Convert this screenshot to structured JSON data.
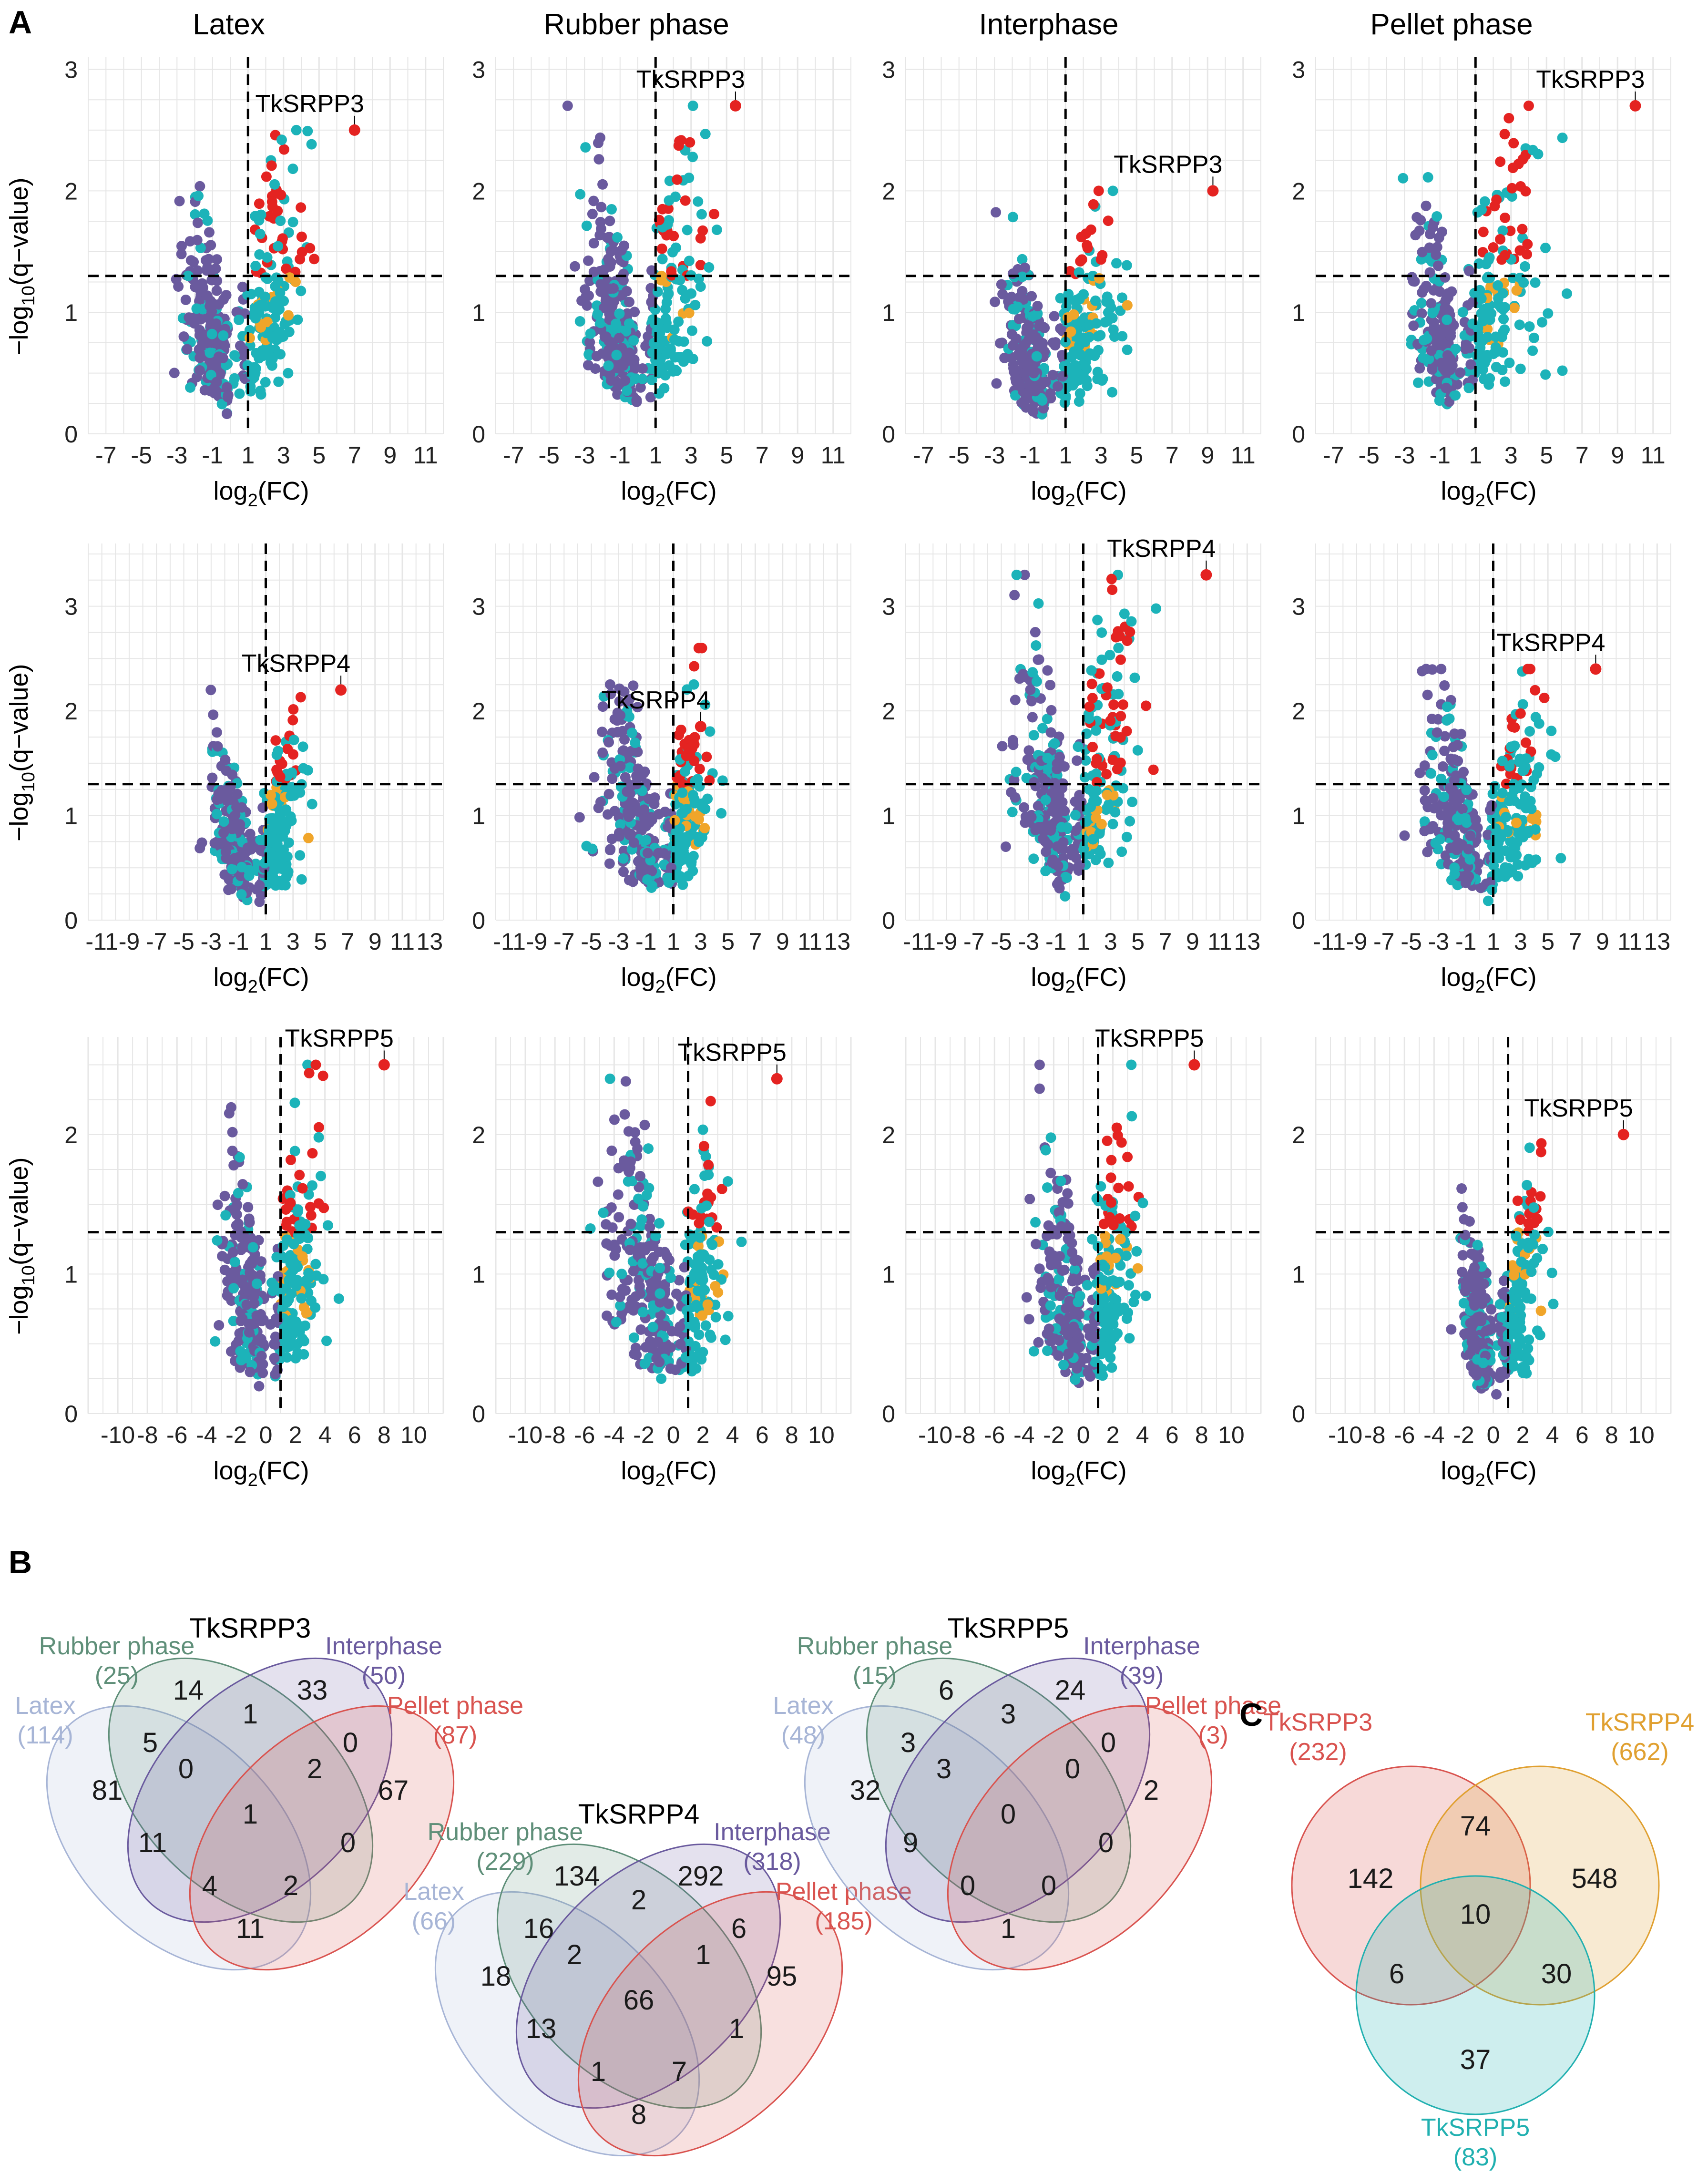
{
  "panel_labels": [
    "A",
    "B",
    "C"
  ],
  "column_titles": [
    "Latex",
    "Rubber phase",
    "Interphase",
    "Pellet phase"
  ],
  "axis_labels": {
    "y_main": "−log",
    "y_sub": "10",
    "y_rest": "(q−value)",
    "x_main": "log",
    "x_sub": "2",
    "x_rest": "(FC)"
  },
  "colors": {
    "purple": "#6a5a9e",
    "cyan": "#1cb3b9",
    "red": "#e42321",
    "orange": "#f0a52a",
    "grid": "#e6e6e6",
    "venn_latex": "#a7b5d6",
    "venn_rubber": "#5f8f79",
    "venn_inter": "#6a5a9e",
    "venn_pellet": "#d9534f",
    "venn_c_srpp3": "#d9534f",
    "venn_c_srpp4": "#e0a030",
    "venn_c_srpp5": "#21b0b0"
  },
  "chart_data": [
    {
      "type": "scatter",
      "title": "Latex",
      "gene": "TkSRPP3",
      "xlim": [
        -8,
        12
      ],
      "ylim": [
        0,
        3.1
      ],
      "xticks": [
        "-7",
        "-5",
        "-3",
        "-1",
        "1",
        "3",
        "5",
        "7",
        "9",
        "11"
      ],
      "yticks": [
        "0",
        "1",
        "2",
        "3"
      ],
      "yticks_pos": [
        0,
        1,
        2,
        3
      ],
      "q_threshold": 1.3,
      "fc_threshold": 1,
      "gene_point": [
        7,
        2.5
      ],
      "cluster": {
        "left": -6,
        "right": 9,
        "peak": 2.5
      }
    },
    {
      "type": "scatter",
      "title": "Rubber phase",
      "gene": "TkSRPP3",
      "xlim": [
        -8,
        12
      ],
      "ylim": [
        0,
        3.1
      ],
      "xticks": [
        "-7",
        "-5",
        "-3",
        "-1",
        "1",
        "3",
        "5",
        "7",
        "9",
        "11"
      ],
      "yticks": [
        "0",
        "1",
        "2",
        "3"
      ],
      "yticks_pos": [
        0,
        1,
        2,
        3
      ],
      "q_threshold": 1.3,
      "fc_threshold": 1,
      "gene_point": [
        5.5,
        2.7
      ],
      "cluster": {
        "left": -7,
        "right": 8,
        "peak": 2.7
      }
    },
    {
      "type": "scatter",
      "title": "Interphase",
      "gene": "TkSRPP3",
      "xlim": [
        -8,
        12
      ],
      "ylim": [
        0,
        3.1
      ],
      "xticks": [
        "-7",
        "-5",
        "-3",
        "-1",
        "1",
        "3",
        "5",
        "7",
        "9",
        "11"
      ],
      "yticks": [
        "0",
        "1",
        "2",
        "3"
      ],
      "yticks_pos": [
        0,
        1,
        2,
        3
      ],
      "q_threshold": 1.3,
      "fc_threshold": 1,
      "gene_point": [
        9.3,
        2.0
      ],
      "cluster": {
        "left": -6,
        "right": 9,
        "peak": 2.0
      }
    },
    {
      "type": "scatter",
      "title": "Pellet phase",
      "gene": "TkSRPP3",
      "xlim": [
        -8,
        12
      ],
      "ylim": [
        0,
        3.1
      ],
      "xticks": [
        "-7",
        "-5",
        "-3",
        "-1",
        "1",
        "3",
        "5",
        "7",
        "9",
        "11"
      ],
      "yticks": [
        "0",
        "1",
        "2",
        "3"
      ],
      "yticks_pos": [
        0,
        1,
        2,
        3
      ],
      "q_threshold": 1.3,
      "fc_threshold": 1,
      "gene_point": [
        10,
        2.7
      ],
      "cluster": {
        "left": -6,
        "right": 11,
        "peak": 2.7
      }
    },
    {
      "type": "scatter",
      "title": "Latex",
      "gene": "TkSRPP4",
      "xlim": [
        -12,
        14
      ],
      "ylim": [
        0,
        3.6
      ],
      "xticks": [
        "-11",
        "-9",
        "-7",
        "-5",
        "-3",
        "-1",
        "1",
        "3",
        "5",
        "7",
        "9",
        "11",
        "13"
      ],
      "yticks": [
        "0",
        "1",
        "2",
        "3"
      ],
      "yticks_pos": [
        0,
        1,
        2,
        3
      ],
      "q_threshold": 1.3,
      "fc_threshold": 1,
      "gene_point": [
        6.5,
        2.2
      ],
      "cluster": {
        "left": -7,
        "right": 7,
        "peak": 2.2
      }
    },
    {
      "type": "scatter",
      "title": "Rubber phase",
      "gene": "TkSRPP4",
      "xlim": [
        -12,
        14
      ],
      "ylim": [
        0,
        3.6
      ],
      "xticks": [
        "-11",
        "-9",
        "-7",
        "-5",
        "-3",
        "-1",
        "1",
        "3",
        "5",
        "7",
        "9",
        "11",
        "13"
      ],
      "yticks": [
        "0",
        "1",
        "2",
        "3"
      ],
      "yticks_pos": [
        0,
        1,
        2,
        3
      ],
      "q_threshold": 1.3,
      "fc_threshold": 1,
      "gene_point": [
        3,
        1.85
      ],
      "cluster": {
        "left": -11,
        "right": 7,
        "peak": 2.6
      }
    },
    {
      "type": "scatter",
      "title": "Interphase",
      "gene": "TkSRPP4",
      "xlim": [
        -12,
        14
      ],
      "ylim": [
        0,
        3.6
      ],
      "xticks": [
        "-11",
        "-9",
        "-7",
        "-5",
        "-3",
        "-1",
        "1",
        "3",
        "5",
        "7",
        "9",
        "11",
        "13"
      ],
      "yticks": [
        "0",
        "1",
        "2",
        "3"
      ],
      "yticks_pos": [
        0,
        1,
        2,
        3
      ],
      "q_threshold": 1.3,
      "fc_threshold": 1,
      "gene_point": [
        10,
        3.3
      ],
      "cluster": {
        "left": -10,
        "right": 12,
        "peak": 3.3
      }
    },
    {
      "type": "scatter",
      "title": "Pellet phase",
      "gene": "TkSRPP4",
      "xlim": [
        -12,
        14
      ],
      "ylim": [
        0,
        3.6
      ],
      "xticks": [
        "-11",
        "-9",
        "-7",
        "-5",
        "-3",
        "-1",
        "1",
        "3",
        "5",
        "7",
        "9",
        "11",
        "13"
      ],
      "yticks": [
        "0",
        "1",
        "2",
        "3"
      ],
      "yticks_pos": [
        0,
        1,
        2,
        3
      ],
      "q_threshold": 1.3,
      "fc_threshold": 1,
      "gene_point": [
        8.5,
        2.4
      ],
      "cluster": {
        "left": -11,
        "right": 11,
        "peak": 2.4
      }
    },
    {
      "type": "scatter",
      "title": "Latex",
      "gene": "TkSRPP5",
      "xlim": [
        -12,
        12
      ],
      "ylim": [
        0,
        2.7
      ],
      "xticks": [
        "-10",
        "-8",
        "-6",
        "-4",
        "-2",
        "0",
        "2",
        "4",
        "6",
        "8",
        "10"
      ],
      "yticks": [
        "0",
        "1",
        "2"
      ],
      "yticks_pos": [
        0,
        1,
        2
      ],
      "q_threshold": 1.3,
      "fc_threshold": 1,
      "gene_point": [
        8,
        2.5
      ],
      "cluster": {
        "left": -7,
        "right": 8,
        "peak": 2.5
      }
    },
    {
      "type": "scatter",
      "title": "Rubber phase",
      "gene": "TkSRPP5",
      "xlim": [
        -12,
        12
      ],
      "ylim": [
        0,
        2.7
      ],
      "xticks": [
        "-10",
        "-8",
        "-6",
        "-4",
        "-2",
        "0",
        "2",
        "4",
        "6",
        "8",
        "10"
      ],
      "yticks": [
        "0",
        "1",
        "2"
      ],
      "yticks_pos": [
        0,
        1,
        2
      ],
      "q_threshold": 1.3,
      "fc_threshold": 1,
      "gene_point": [
        7,
        2.4
      ],
      "cluster": {
        "left": -11,
        "right": 7,
        "peak": 2.4
      }
    },
    {
      "type": "scatter",
      "title": "Interphase",
      "gene": "TkSRPP5",
      "xlim": [
        -12,
        12
      ],
      "ylim": [
        0,
        2.7
      ],
      "xticks": [
        "-10",
        "-8",
        "-6",
        "-4",
        "-2",
        "0",
        "2",
        "4",
        "6",
        "8",
        "10"
      ],
      "yticks": [
        "0",
        "1",
        "2"
      ],
      "yticks_pos": [
        0,
        1,
        2
      ],
      "q_threshold": 1.3,
      "fc_threshold": 1,
      "gene_point": [
        7.5,
        2.5
      ],
      "cluster": {
        "left": -7,
        "right": 7,
        "peak": 2.5
      }
    },
    {
      "type": "scatter",
      "title": "Pellet phase",
      "gene": "TkSRPP5",
      "xlim": [
        -12,
        12
      ],
      "ylim": [
        0,
        2.7
      ],
      "xticks": [
        "-10",
        "-8",
        "-6",
        "-4",
        "-2",
        "0",
        "2",
        "4",
        "6",
        "8",
        "10"
      ],
      "yticks": [
        "0",
        "1",
        "2"
      ],
      "yticks_pos": [
        0,
        1,
        2
      ],
      "q_threshold": 1.3,
      "fc_threshold": 1,
      "gene_point": [
        8.8,
        2.0
      ],
      "cluster": {
        "left": -5,
        "right": 6,
        "peak": 2.0
      }
    }
  ],
  "venn_b": [
    {
      "title": "TkSRPP3",
      "sets": [
        {
          "name": "Latex",
          "count": "(114)"
        },
        {
          "name": "Rubber phase",
          "count": "(25)"
        },
        {
          "name": "Interphase",
          "count": "(50)"
        },
        {
          "name": "Pellet phase",
          "count": "(87)"
        }
      ],
      "regions": [
        "81",
        "14",
        "33",
        "67",
        "5",
        "1",
        "0",
        "11",
        "0",
        "2",
        "0",
        "1",
        "4",
        "2",
        "11"
      ]
    },
    {
      "title": "TkSRPP4",
      "sets": [
        {
          "name": "Latex",
          "count": "(66)"
        },
        {
          "name": "Rubber phase",
          "count": "(229)"
        },
        {
          "name": "Interphase",
          "count": "(318)"
        },
        {
          "name": "Pellet phase",
          "count": "(185)"
        }
      ],
      "regions": [
        "18",
        "134",
        "292",
        "95",
        "16",
        "2",
        "6",
        "13",
        "2",
        "1",
        "1",
        "66",
        "1",
        "7",
        "8"
      ]
    },
    {
      "title": "TkSRPP5",
      "sets": [
        {
          "name": "Latex",
          "count": "(48)"
        },
        {
          "name": "Rubber phase",
          "count": "(15)"
        },
        {
          "name": "Interphase",
          "count": "(39)"
        },
        {
          "name": "Pellet phase",
          "count": "(3)"
        }
      ],
      "regions": [
        "32",
        "6",
        "24",
        "2",
        "3",
        "3",
        "0",
        "9",
        "3",
        "0",
        "0",
        "0",
        "0",
        "0",
        "1"
      ]
    }
  ],
  "venn_c": {
    "sets": [
      {
        "name": "TkSRPP3",
        "count": "(232)"
      },
      {
        "name": "TkSRPP4",
        "count": "(662)"
      },
      {
        "name": "TkSRPP5",
        "count": "(83)"
      }
    ],
    "regions": [
      "142",
      "548",
      "37",
      "74",
      "6",
      "30",
      "10"
    ]
  }
}
